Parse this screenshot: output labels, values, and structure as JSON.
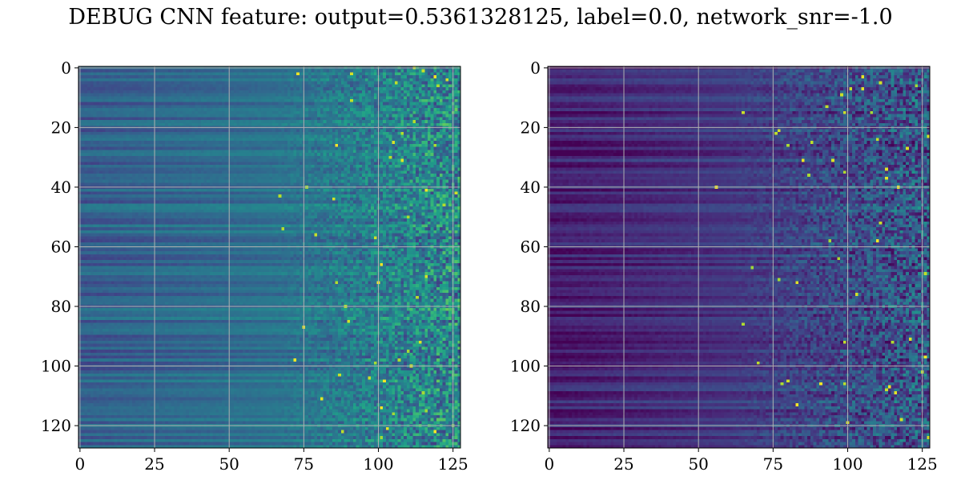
{
  "figure": {
    "title": "DEBUG CNN feature: output=0.5361328125, label=0.0, network_snr=-1.0"
  },
  "colors": {
    "background": "#ffffff",
    "grid": "#b0b0b0",
    "axes": "#000000",
    "colormap": [
      "#440154",
      "#482878",
      "#3e4989",
      "#31688e",
      "#26828e",
      "#1f9e89",
      "#35b779",
      "#6ece58",
      "#b5de2b",
      "#fde725"
    ]
  },
  "chart_data": [
    {
      "type": "heatmap",
      "name": "",
      "colormap": "viridis",
      "grid": true,
      "rows": 128,
      "cols": 128,
      "xlim": [
        -0.5,
        127.5
      ],
      "ylim": [
        127.5,
        -0.5
      ],
      "x_ticks": [
        0,
        25,
        50,
        75,
        100,
        125
      ],
      "y_ticks": [
        0,
        20,
        40,
        60,
        80,
        100,
        120
      ],
      "x_tick_labels": [
        "0",
        "25",
        "50",
        "75",
        "100",
        "125"
      ],
      "y_tick_labels": [
        "0",
        "20",
        "40",
        "60",
        "80",
        "100",
        "120"
      ],
      "pattern": {
        "left_level": 0.3,
        "right_level": 0.45,
        "noise_start_col": 60,
        "noise_amplitude": 0.55
      }
    },
    {
      "type": "heatmap",
      "name": "",
      "colormap": "viridis",
      "grid": true,
      "rows": 128,
      "cols": 128,
      "xlim": [
        -0.5,
        127.5
      ],
      "ylim": [
        127.5,
        -0.5
      ],
      "x_ticks": [
        0,
        25,
        50,
        75,
        100,
        125
      ],
      "y_ticks": [
        0,
        20,
        40,
        60,
        80,
        100,
        120
      ],
      "x_tick_labels": [
        "0",
        "25",
        "50",
        "75",
        "100",
        "125"
      ],
      "y_tick_labels": [
        "0",
        "20",
        "40",
        "60",
        "80",
        "100",
        "120"
      ],
      "pattern": {
        "left_level": 0.08,
        "right_level": 0.25,
        "noise_start_col": 55,
        "noise_amplitude": 0.5
      }
    }
  ]
}
